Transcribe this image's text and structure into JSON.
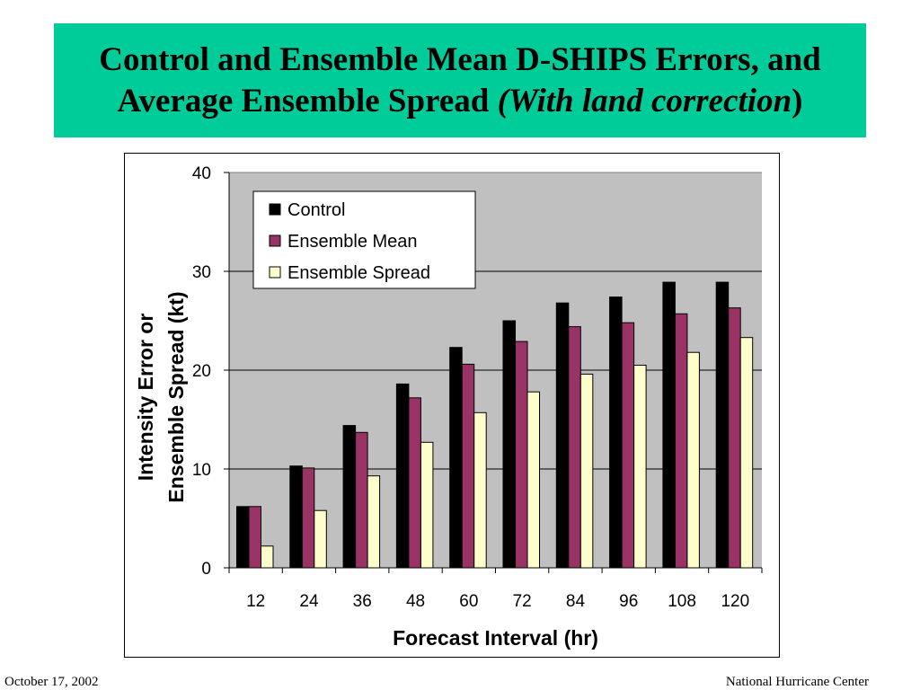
{
  "slide": {
    "title_line1": "Control and Ensemble Mean D-SHIPS Errors, and",
    "title_line2_plain": "Average Ensemble Spread ",
    "title_line2_italic": "(With land correction",
    "title_line2_close": ")"
  },
  "footer": {
    "date": "October 17, 2002",
    "org": "National Hurricane Center"
  },
  "colors": {
    "title_bg": "#00cc99",
    "plot_bg": "#c0c0c0",
    "control": "#000000",
    "ensemble_mean": "#993366",
    "ensemble_spread": "#ffffcc"
  },
  "chart_data": {
    "type": "bar",
    "title": "",
    "xlabel": "Forecast Interval (hr)",
    "ylabel_line1": "Intensity Error or",
    "ylabel_line2": "Ensemble Spread (kt)",
    "ylim": [
      0,
      40
    ],
    "yticks": [
      "0",
      "10",
      "20",
      "30",
      "40"
    ],
    "grid": true,
    "legend_position": "top-left",
    "categories": [
      "12",
      "24",
      "36",
      "48",
      "60",
      "72",
      "84",
      "96",
      "108",
      "120"
    ],
    "series": [
      {
        "name": "Control",
        "color": "#000000",
        "values": [
          6.2,
          10.3,
          14.4,
          18.6,
          22.3,
          25.0,
          26.8,
          27.4,
          28.9,
          28.9
        ]
      },
      {
        "name": "Ensemble Mean",
        "color": "#993366",
        "values": [
          6.2,
          10.1,
          13.7,
          17.2,
          20.6,
          22.9,
          24.4,
          24.8,
          25.7,
          26.3
        ]
      },
      {
        "name": "Ensemble Spread",
        "color": "#ffffcc",
        "values": [
          2.2,
          5.8,
          9.3,
          12.7,
          15.7,
          17.8,
          19.6,
          20.5,
          21.8,
          23.3
        ]
      }
    ]
  }
}
